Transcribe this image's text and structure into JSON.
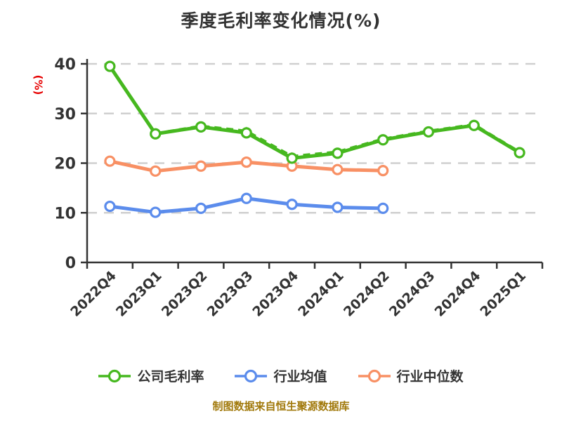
{
  "title": "季度毛利率变化情况(%)",
  "y_axis_unit": "(%)",
  "footer": "制图数据来自恒生聚源数据库",
  "colors": {
    "background": "#ffffff",
    "text": "#333333",
    "grid": "#cfcfcf",
    "axis": "#333333",
    "unit_label": "#e60000",
    "footer_text": "#a1790b",
    "marker_fill": "#ffffff",
    "company": "#46b81f",
    "industry_avg": "#5b8cec",
    "industry_median": "#f89064"
  },
  "chart_data": {
    "type": "line",
    "title": "季度毛利率变化情况(%)",
    "categories": [
      "2022Q4",
      "2023Q1",
      "2023Q2",
      "2023Q3",
      "2023Q4",
      "2024Q1",
      "2024Q2",
      "2024Q3",
      "2024Q4",
      "2025Q1"
    ],
    "ylabel": "(%)",
    "ylim": [
      0,
      40
    ],
    "yticks": [
      0,
      10,
      20,
      30,
      40
    ],
    "grid": "horizontal-dashed",
    "legend_position": "bottom",
    "series": [
      {
        "name": "公司毛利率",
        "color": "#46b81f",
        "line_style": "solid",
        "marker": "circle",
        "in_legend": true,
        "values": [
          39.5,
          25.9,
          27.3,
          26.1,
          21.0,
          22.0,
          24.7,
          26.3,
          27.6,
          22.1
        ]
      },
      {
        "name": "公司毛利率-虚线叠加",
        "color": "#46b81f",
        "line_style": "dashed",
        "marker": "triangle",
        "in_legend": false,
        "values": [
          null,
          26.0,
          27.5,
          26.5,
          21.4,
          22.3,
          24.9,
          26.5,
          27.8,
          22.3
        ]
      },
      {
        "name": "行业均值",
        "color": "#5b8cec",
        "line_style": "solid",
        "marker": "circle",
        "in_legend": true,
        "values": [
          11.3,
          10.1,
          10.9,
          12.9,
          11.7,
          11.1,
          10.9,
          null,
          null,
          null
        ]
      },
      {
        "name": "行业中位数",
        "color": "#f89064",
        "line_style": "solid",
        "marker": "circle",
        "in_legend": true,
        "values": [
          20.4,
          18.4,
          19.4,
          20.2,
          19.4,
          18.7,
          18.5,
          null,
          null,
          null
        ]
      }
    ]
  },
  "legend": {
    "items": [
      {
        "label": "公司毛利率",
        "color": "#46b81f"
      },
      {
        "label": "行业均值",
        "color": "#5b8cec"
      },
      {
        "label": "行业中位数",
        "color": "#f89064"
      }
    ]
  }
}
